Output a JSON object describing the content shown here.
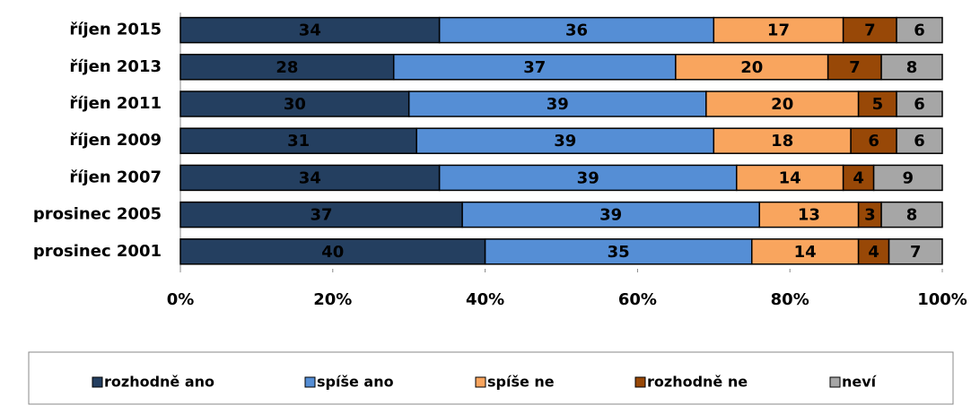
{
  "chart_data": {
    "type": "bar",
    "orientation": "horizontal",
    "stacked": true,
    "categories": [
      "říjen 2015",
      "říjen 2013",
      "říjen 2011",
      "říjen 2009",
      "říjen 2007",
      "prosinec 2005",
      "prosinec 2001"
    ],
    "series": [
      {
        "name": "rozhodně ano",
        "color": "#243f60",
        "values": [
          34,
          28,
          30,
          31,
          34,
          37,
          40
        ]
      },
      {
        "name": "spíše ano",
        "color": "#558ed5",
        "values": [
          36,
          37,
          39,
          39,
          39,
          39,
          35
        ]
      },
      {
        "name": "spíše ne",
        "color": "#f9a55e",
        "values": [
          17,
          20,
          20,
          18,
          14,
          13,
          14
        ]
      },
      {
        "name": "rozhodně ne",
        "color": "#984807",
        "values": [
          7,
          7,
          5,
          6,
          4,
          3,
          4
        ]
      },
      {
        "name": "neví",
        "color": "#a6a6a6",
        "values": [
          6,
          8,
          6,
          6,
          9,
          8,
          7
        ]
      }
    ],
    "xlim": [
      0,
      100
    ],
    "xticks": [
      {
        "value": 0,
        "label": "0%"
      },
      {
        "value": 20,
        "label": "20%"
      },
      {
        "value": 40,
        "label": "40%"
      },
      {
        "value": 60,
        "label": "60%"
      },
      {
        "value": 80,
        "label": "80%"
      },
      {
        "value": 100,
        "label": "100%"
      }
    ],
    "legend": "bottom"
  }
}
